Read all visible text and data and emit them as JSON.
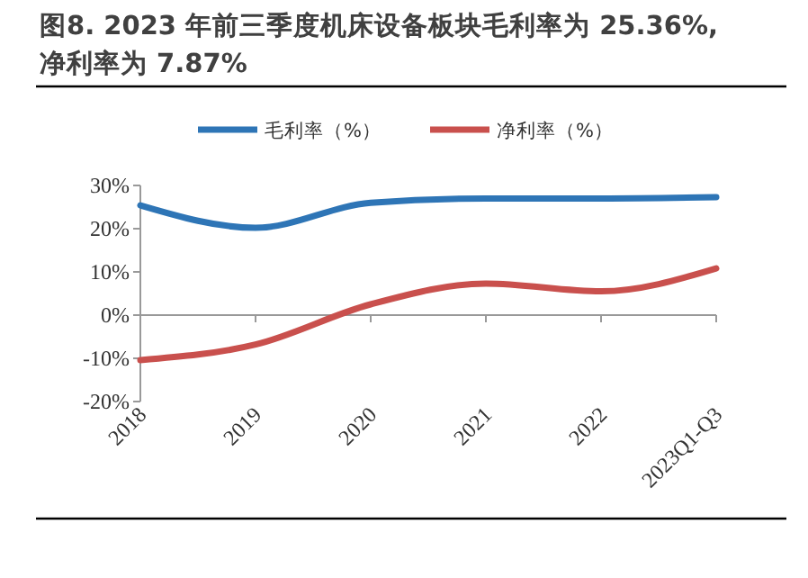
{
  "chart_data": {
    "type": "line",
    "title": "图8. 2023 年前三季度机床设备板块毛利率为 25.36%, 净利率为 7.87%",
    "categories": [
      "2018",
      "2019",
      "2020",
      "2021",
      "2022",
      "2023Q1-Q3"
    ],
    "series": [
      {
        "name": "毛利率（%）",
        "color": "#2e75b6",
        "values": [
          25.4,
          20.2,
          26,
          27,
          27,
          27.3
        ]
      },
      {
        "name": "净利率（%）",
        "color": "#c9504d",
        "values": [
          -10.4,
          -6.8,
          2.5,
          7.3,
          5.5,
          10.8
        ]
      }
    ],
    "ylim": [
      -20,
      30
    ],
    "yticks": [
      {
        "value": -20,
        "label": "-20%"
      },
      {
        "value": -10,
        "label": "-10%"
      },
      {
        "value": 0,
        "label": "0%"
      },
      {
        "value": 10,
        "label": "10%"
      },
      {
        "value": 20,
        "label": "20%"
      },
      {
        "value": 30,
        "label": "30%"
      }
    ],
    "legend": "top",
    "marker": "none",
    "line_style": "solid"
  }
}
